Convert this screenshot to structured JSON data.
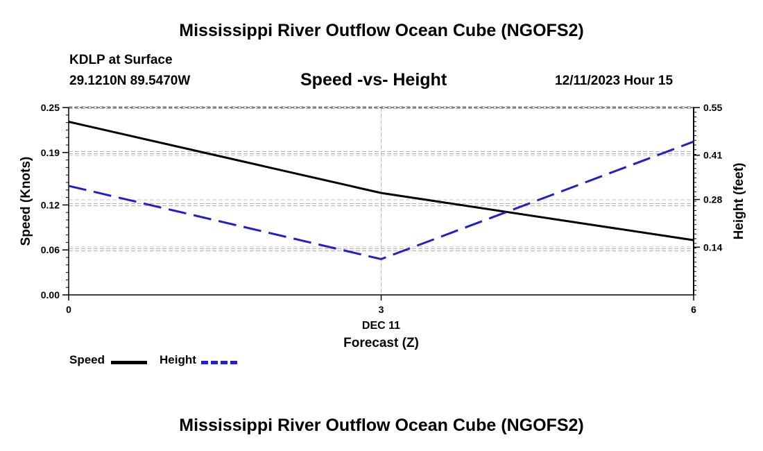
{
  "header": {
    "title": "Mississippi River Outflow Ocean Cube (NGOFS2)",
    "station": "KDLP at Surface",
    "coordinates": "29.1210N  89.5470W",
    "subtitle": "Speed -vs- Height",
    "datetime": "12/11/2023 Hour 15"
  },
  "footer": {
    "title": "Mississippi River Outflow Ocean Cube (NGOFS2)"
  },
  "chart_data": {
    "type": "line",
    "title": "Speed -vs- Height",
    "xlabel": "Forecast (Z)",
    "x_date_label": "DEC 11",
    "x": [
      0,
      3,
      6
    ],
    "xlim": [
      0,
      6
    ],
    "x_ticks": [
      "0",
      "3",
      "6"
    ],
    "grid": true,
    "legend_position": "bottom-left",
    "y_left": {
      "label": "Speed (Knots)",
      "ylim": [
        0,
        0.25
      ],
      "ticks": [
        0.0,
        0.06,
        0.12,
        0.19,
        0.25
      ],
      "tick_labels": [
        "0.00",
        "0.06",
        "0.12",
        "0.19",
        "0.25"
      ]
    },
    "y_right": {
      "label": "Height (feet)",
      "ylim": [
        0,
        0.55
      ],
      "ticks": [
        0.14,
        0.28,
        0.41,
        0.55
      ],
      "tick_labels": [
        "0.14",
        "0.28",
        "0.41",
        "0.55"
      ]
    },
    "series": [
      {
        "name": "Speed",
        "axis": "left",
        "color": "#000000",
        "style": "solid",
        "values": [
          0.231,
          0.136,
          0.073
        ]
      },
      {
        "name": "Height",
        "axis": "right",
        "color": "#1f1fcc",
        "style": "dashed",
        "values": [
          0.32,
          0.105,
          0.45
        ]
      }
    ]
  }
}
